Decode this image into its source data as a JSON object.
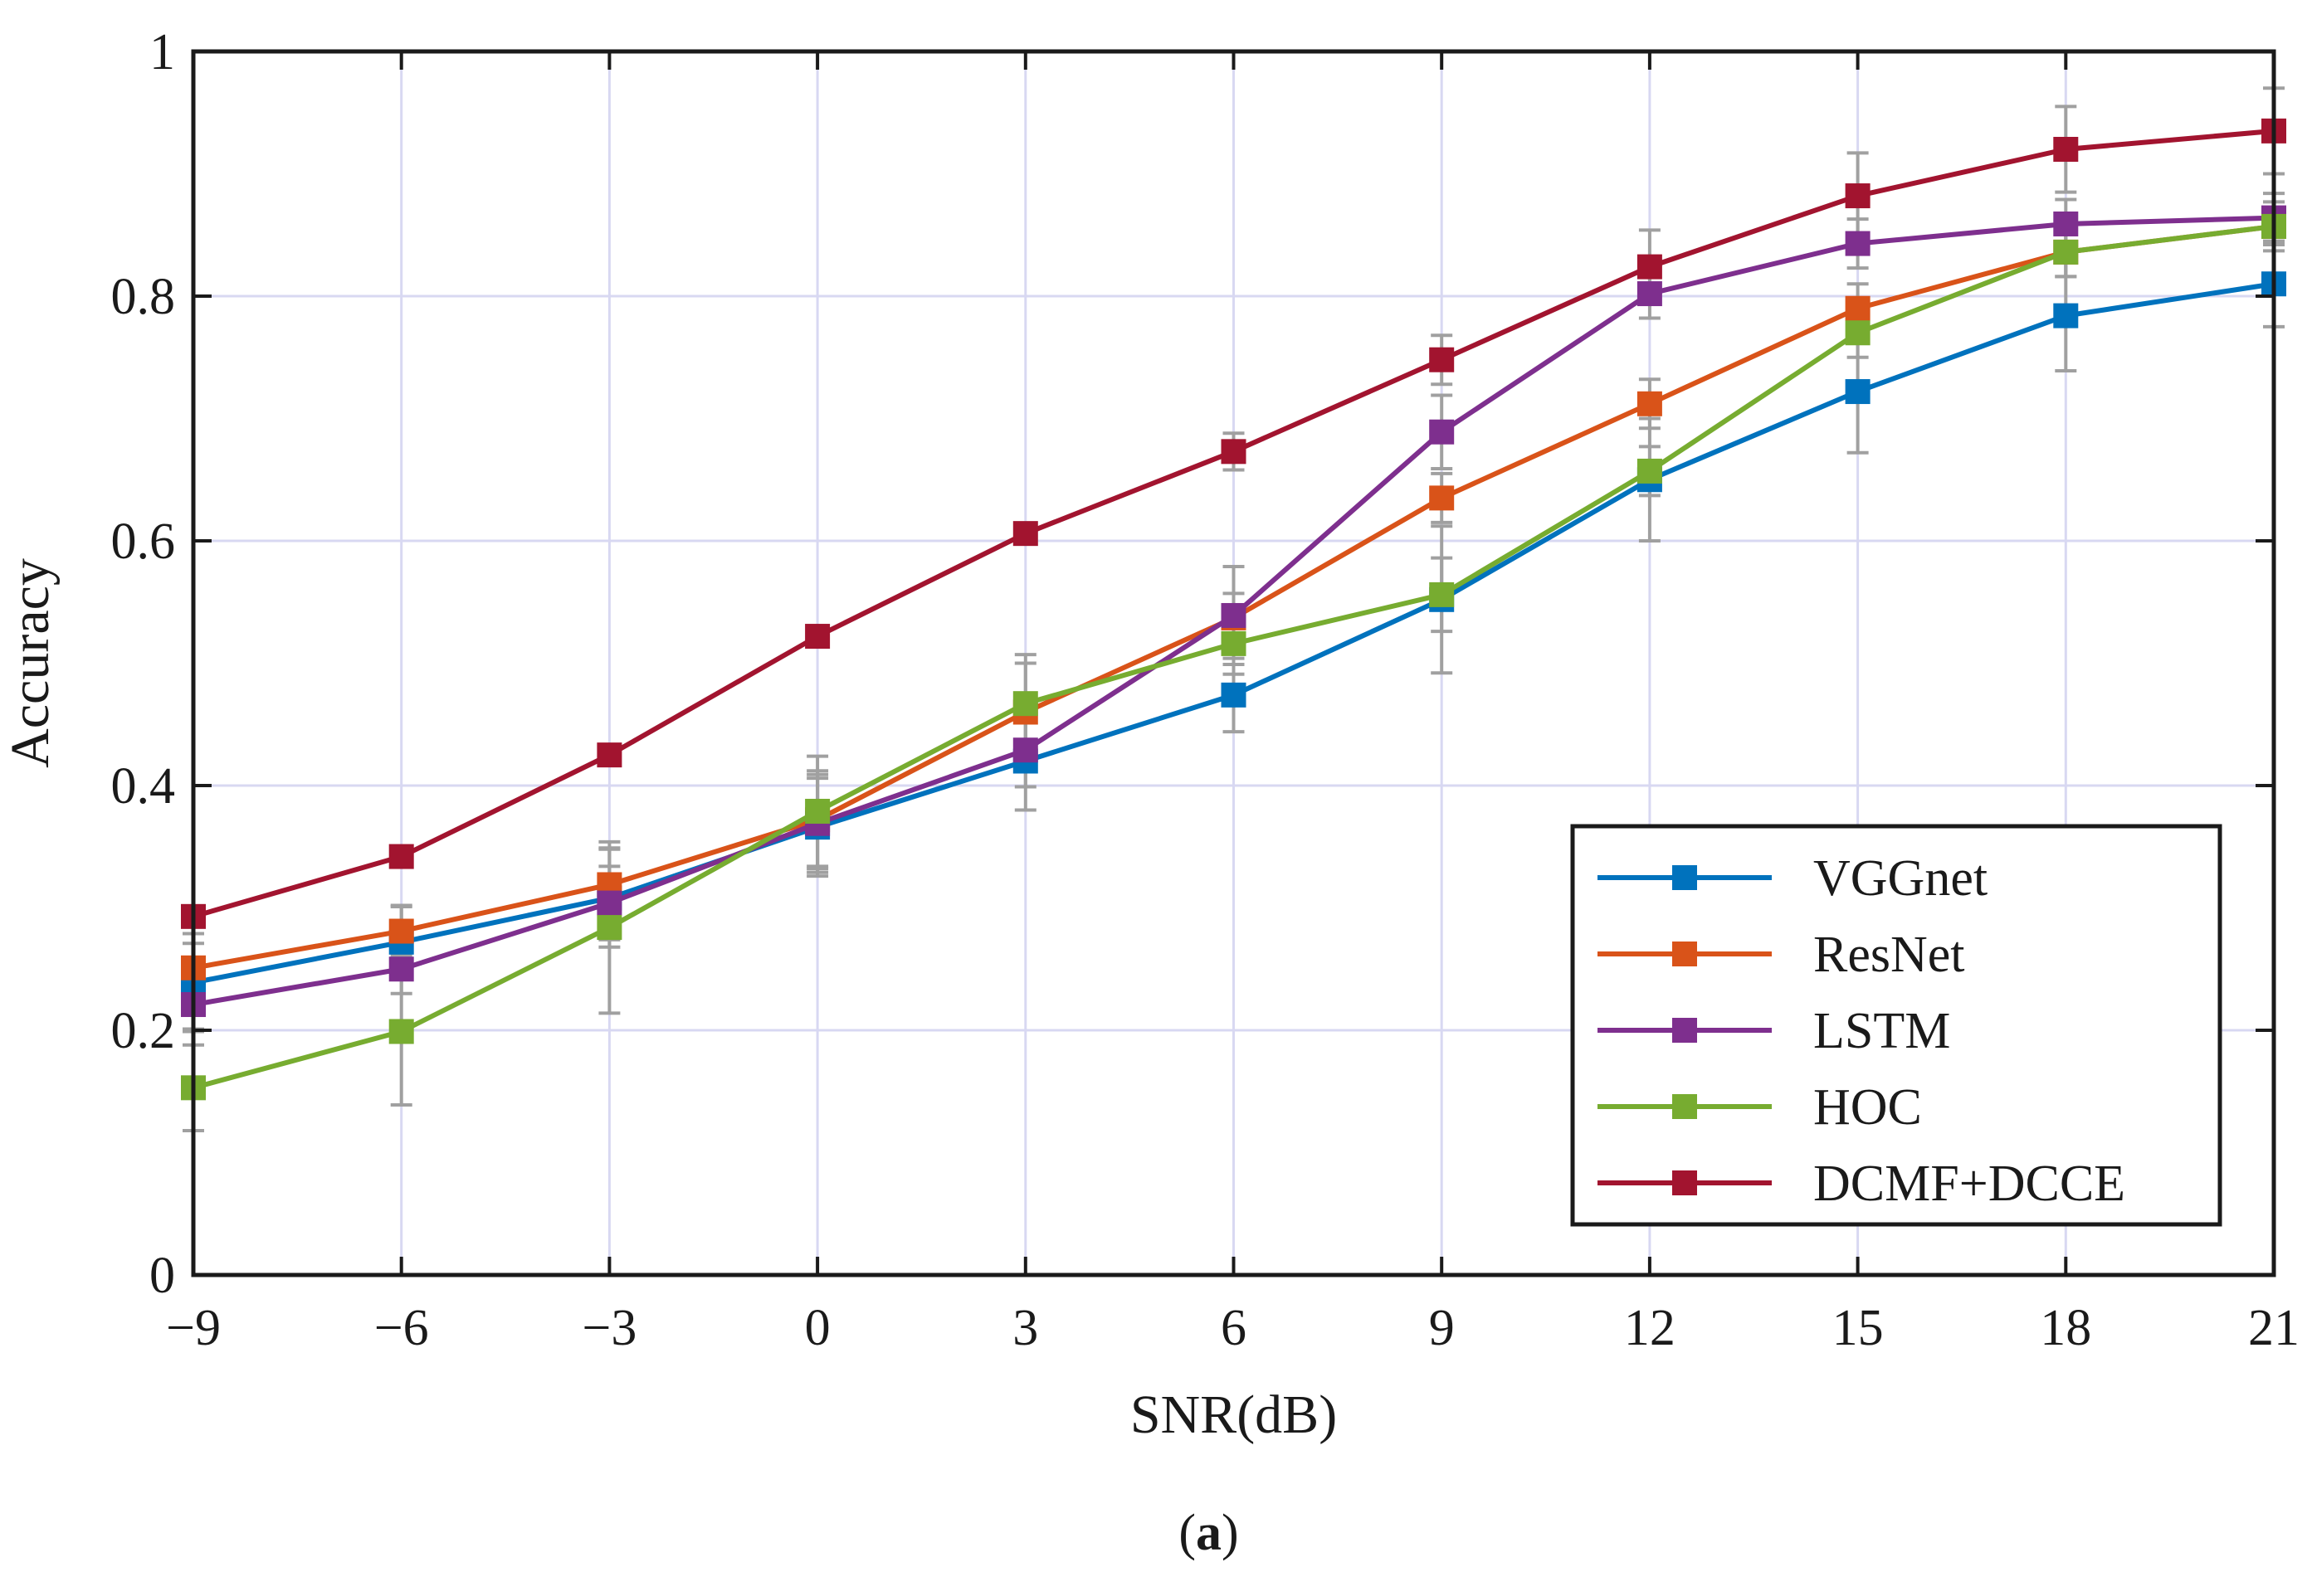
{
  "chart_data": {
    "type": "line",
    "title": "",
    "xlabel": "SNR(dB)",
    "ylabel": "Accuracy",
    "x": [
      -9,
      -6,
      -3,
      0,
      3,
      6,
      9,
      12,
      15,
      18,
      21
    ],
    "x_tick_labels": [
      "−9",
      "−6",
      "−3",
      "0",
      "3",
      "6",
      "9",
      "12",
      "15",
      "18",
      "21"
    ],
    "y_tick_labels": [
      "0",
      "0.2",
      "0.4",
      "0.6",
      "0.8",
      "1"
    ],
    "y_ticks": [
      0,
      0.2,
      0.4,
      0.6,
      0.8,
      1.0
    ],
    "xlim": [
      -9,
      21
    ],
    "ylim": [
      0,
      1
    ],
    "grid": true,
    "legend_position": "bottom-right",
    "series": [
      {
        "name": "VGGnet",
        "color": "#0072BD",
        "values": [
          0.239,
          0.272,
          0.308,
          0.366,
          0.42,
          0.474,
          0.552,
          0.65,
          0.722,
          0.784,
          0.81
        ],
        "error": [
          0.04,
          0.03,
          0.04,
          0.04,
          0.04,
          0.03,
          0.06,
          0.05,
          0.05,
          0.045,
          0.035
        ]
      },
      {
        "name": "ResNet",
        "color": "#D95319",
        "values": [
          0.251,
          0.281,
          0.319,
          0.372,
          0.46,
          0.537,
          0.635,
          0.712,
          0.79,
          0.836,
          0.857
        ],
        "error": [
          0.02,
          0.02,
          0.03,
          0.04,
          0.04,
          0.02,
          0.02,
          0.02,
          0.02,
          0.02,
          0.02
        ]
      },
      {
        "name": "LSTM",
        "color": "#7E2F8E",
        "values": [
          0.221,
          0.25,
          0.304,
          0.369,
          0.429,
          0.539,
          0.689,
          0.802,
          0.843,
          0.859,
          0.864
        ],
        "error": [
          0.02,
          0.02,
          0.03,
          0.04,
          0.03,
          0.04,
          0.03,
          0.02,
          0.02,
          0.02,
          0.02
        ]
      },
      {
        "name": "HOC",
        "color": "#77AC30",
        "values": [
          0.153,
          0.199,
          0.284,
          0.379,
          0.467,
          0.516,
          0.556,
          0.657,
          0.77,
          0.836,
          0.857
        ],
        "error": [
          0.035,
          0.06,
          0.07,
          0.045,
          0.04,
          0.025,
          0.03,
          0.02,
          0.02,
          0.02,
          0.015
        ]
      },
      {
        "name": "DCMF+DCCE",
        "color": "#A2142F",
        "values": [
          0.293,
          0.342,
          0.425,
          0.522,
          0.606,
          0.673,
          0.748,
          0.824,
          0.882,
          0.92,
          0.935
        ],
        "error": [
          0.0,
          0.0,
          0.0,
          0.0,
          0.0,
          0.015,
          0.02,
          0.03,
          0.035,
          0.035,
          0.035
        ]
      }
    ],
    "error_bar_color": "#A0A0A0"
  },
  "caption": {
    "open": "(",
    "letter": "a",
    "close": ")"
  }
}
